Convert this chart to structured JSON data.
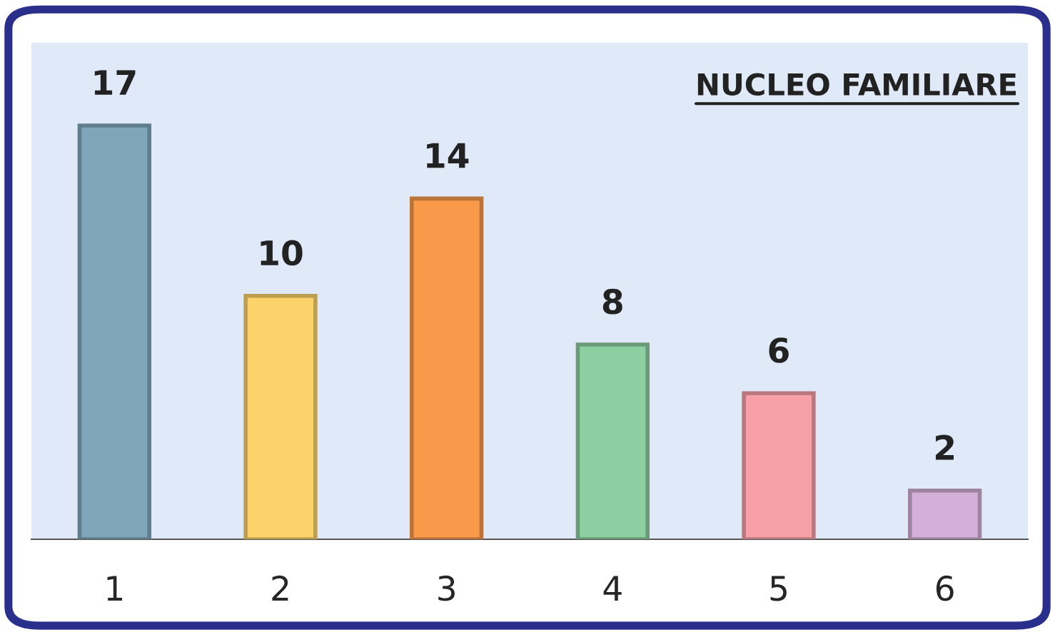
{
  "chart_data": {
    "type": "bar",
    "title": "NUCLEO FAMILIARE",
    "categories": [
      "1",
      "2",
      "3",
      "4",
      "5",
      "6"
    ],
    "values": [
      17,
      10,
      14,
      8,
      6,
      2
    ],
    "colors": [
      "#7fa6b8",
      "#fbd36a",
      "#f89a4a",
      "#8ccfa0",
      "#f7a0a8",
      "#d4b0d8"
    ],
    "data_labels": true,
    "grid": false,
    "legend": false,
    "tick_labels": "x"
  }
}
